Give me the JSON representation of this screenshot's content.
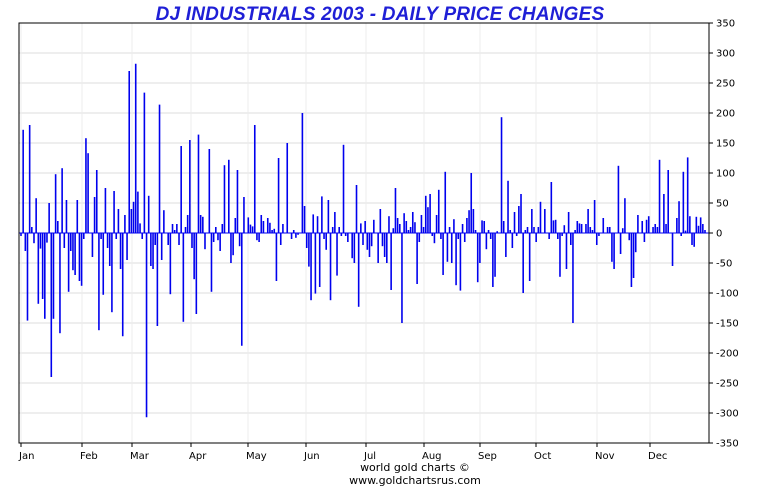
{
  "chart_data": {
    "type": "bar",
    "title": "DJ INDUSTRIALS 2003 - DAILY PRICE CHANGES",
    "xlabel": "",
    "ylabel": "",
    "ylim": [
      -350,
      350
    ],
    "y_ticks": [
      350,
      300,
      250,
      200,
      150,
      100,
      50,
      0,
      -50,
      -100,
      -150,
      -200,
      -250,
      -300,
      -350
    ],
    "x_ticks": [
      "Jan",
      "Feb",
      "Mar",
      "Apr",
      "May",
      "Jun",
      "Jul",
      "Aug",
      "Sep",
      "Oct",
      "Nov",
      "Dec"
    ],
    "y_axis_side": "right",
    "grid": true,
    "bar_color": "#0000ee",
    "values": [
      -5,
      172,
      -30,
      -146,
      180,
      10,
      -17,
      58,
      -118,
      -26,
      -110,
      -143,
      -16,
      50,
      -240,
      -143,
      98,
      20,
      -167,
      108,
      -25,
      55,
      -98,
      -30,
      -62,
      -70,
      55,
      -80,
      -88,
      -10,
      158,
      133,
      0,
      -40,
      60,
      105,
      -162,
      -10,
      -103,
      75,
      -25,
      -55,
      -132,
      70,
      -10,
      40,
      -60,
      -172,
      30,
      -45,
      270,
      40,
      52,
      282,
      69,
      16,
      -10,
      234,
      -307,
      62,
      -55,
      -60,
      -20,
      -155,
      214,
      -45,
      38,
      0,
      -20,
      -102,
      15,
      5,
      15,
      -20,
      145,
      -148,
      10,
      30,
      155,
      -25,
      -77,
      -135,
      164,
      30,
      27,
      -27,
      0,
      140,
      -98,
      -15,
      10,
      -12,
      -30,
      15,
      113,
      0,
      122,
      -50,
      -37,
      25,
      105,
      -22,
      -188,
      60,
      0,
      26,
      14,
      11,
      180,
      -12,
      -15,
      30,
      20,
      0,
      25,
      17,
      5,
      7,
      -80,
      125,
      -20,
      15,
      0,
      150,
      0,
      -10,
      5,
      -8,
      -3,
      0,
      200,
      45,
      -25,
      -56,
      -112,
      31,
      -101,
      28,
      -90,
      61,
      -10,
      -28,
      55,
      -112,
      10,
      35,
      -71,
      10,
      -5,
      147,
      -5,
      -15,
      0,
      -42,
      -50,
      80,
      -123,
      16,
      -20,
      20,
      -28,
      -40,
      -22,
      22,
      0,
      -50,
      40,
      -22,
      -40,
      -50,
      28,
      -95,
      8,
      75,
      25,
      15,
      -150,
      33,
      20,
      5,
      10,
      35,
      18,
      -85,
      -15,
      30,
      10,
      62,
      43,
      65,
      -5,
      -17,
      30,
      72,
      -10,
      -70,
      102,
      -48,
      10,
      -50,
      23,
      -87,
      -10,
      -96,
      15,
      -15,
      25,
      38,
      100,
      40,
      5,
      -82,
      -50,
      21,
      20,
      -27,
      5,
      -10,
      -90,
      -73,
      3,
      0,
      193,
      20,
      -40,
      87,
      5,
      -25,
      35,
      -5,
      45,
      65,
      -100,
      5,
      10,
      -80,
      40,
      10,
      -15,
      10,
      52,
      0,
      40,
      0,
      -10,
      85,
      21,
      22,
      -10,
      -73,
      -5,
      13,
      -60,
      35,
      -20,
      -150,
      5,
      20,
      16,
      15,
      0,
      15,
      40,
      10,
      5,
      55,
      -20,
      -5,
      0,
      25,
      0,
      10,
      10,
      -48,
      -60,
      0,
      112,
      -35,
      8,
      58,
      0,
      -12,
      -90,
      -75,
      -32,
      30,
      0,
      20,
      -15,
      22,
      28,
      0,
      10,
      15,
      10,
      122,
      0,
      65,
      15,
      105,
      0,
      -55,
      0,
      25,
      53,
      -5,
      102,
      4,
      126,
      28,
      -20,
      -23,
      27,
      12,
      26,
      15,
      5
    ]
  },
  "credit": "world gold charts © www.goldchartsrus.com"
}
